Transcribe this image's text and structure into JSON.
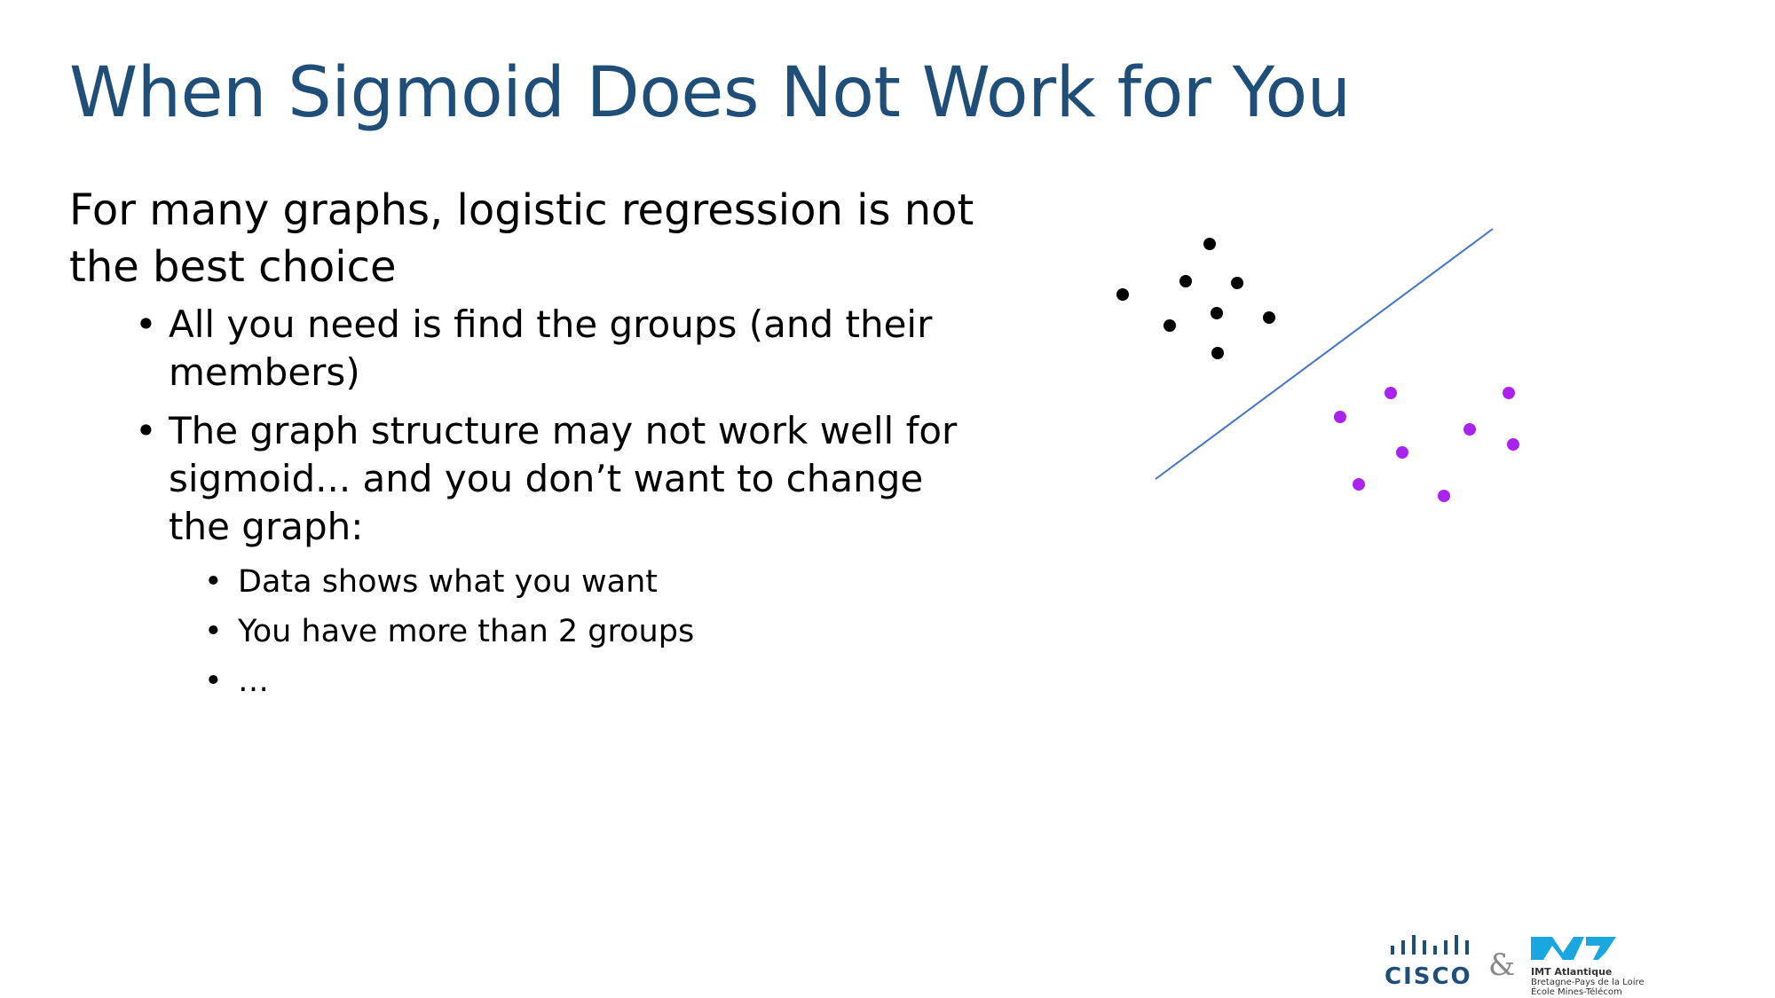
{
  "slide": {
    "title": "When Sigmoid Does Not Work for You",
    "lead": "For many graphs, logistic regression is not the best choice",
    "bullets": [
      "All you need is find the groups (and their members)",
      "The graph structure may not work well for sigmoid... and you don’t want to change the graph:"
    ],
    "sub_bullets": [
      "Data shows what you want",
      "You have more than 2 groups",
      "…"
    ]
  },
  "figure": {
    "group_a_color": "#000000",
    "group_b_color": "#AA22EE",
    "line_color": "#4472C4"
  },
  "logos": {
    "cisco": "CISCO",
    "ampersand": "&",
    "imt_name": "IMT Atlantique",
    "imt_line2": "Bretagne-Pays de la Loire",
    "imt_line3": "École Mines-Télécom"
  }
}
